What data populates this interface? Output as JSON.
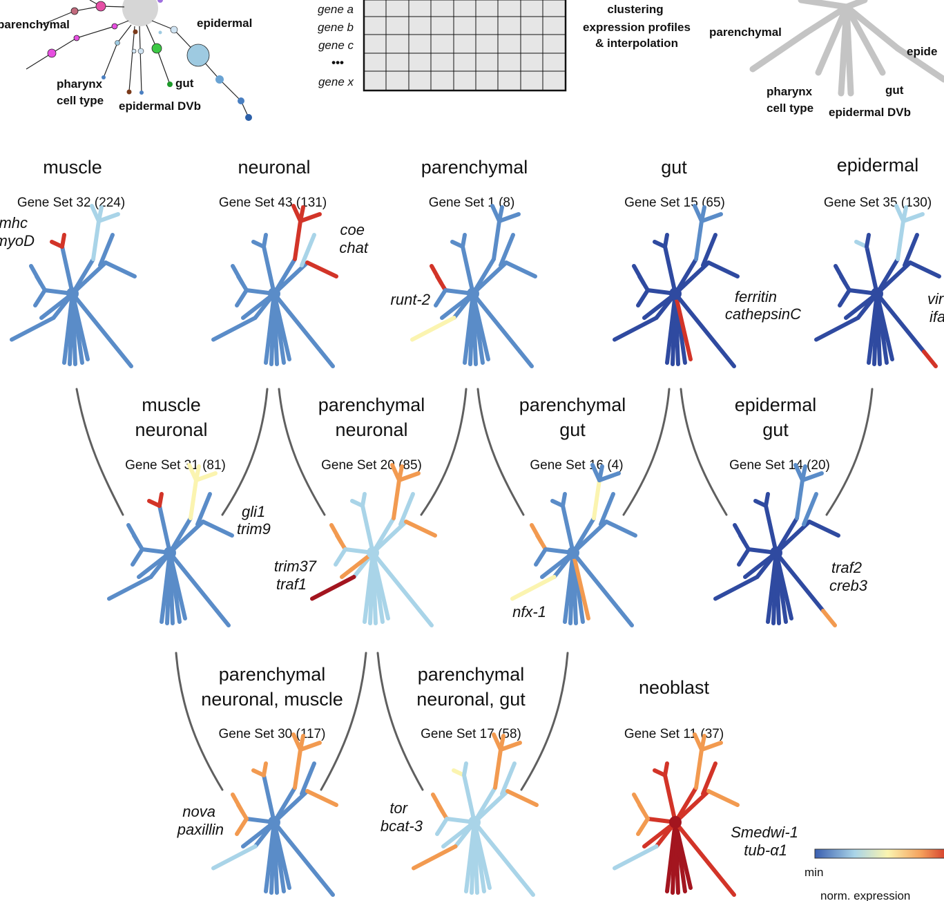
{
  "top": {
    "lineage_labels": {
      "parenchymal": "parenchymal",
      "epidermal": "epidermal",
      "pharynx": "pharynx",
      "cell_type": "cell type",
      "epidermal_dvb": "epidermal DVb",
      "gut": "gut"
    },
    "right_lineage_labels": {
      "parenchymal": "parenchymal",
      "epidermal": "epide",
      "pharynx": "pharynx",
      "cell_type": "cell type",
      "epidermal_dvb": "epidermal DVb",
      "gut": "gut"
    },
    "matrix_rows": [
      "gene a",
      "gene b",
      "gene c",
      "•••",
      "gene x"
    ],
    "clustering_text": [
      "clustering",
      "expression profiles",
      "& interpolation"
    ]
  },
  "panels": [
    {
      "id": "muscle",
      "title": [
        "muscle"
      ],
      "gene_set": "Gene Set 32 (224)",
      "genes": [
        "mhc",
        "myoD"
      ]
    },
    {
      "id": "neuronal",
      "title": [
        "neuronal"
      ],
      "gene_set": "Gene Set 43 (131)",
      "genes": [
        "coe",
        "chat"
      ]
    },
    {
      "id": "parenchymal",
      "title": [
        "parenchymal"
      ],
      "gene_set": "Gene Set 1 (8)",
      "genes": [
        "runt-2"
      ]
    },
    {
      "id": "gut",
      "title": [
        "gut"
      ],
      "gene_set": "Gene Set 15 (65)",
      "genes": [
        "ferritin",
        "cathepsinC"
      ]
    },
    {
      "id": "epidermal",
      "title": [
        "epidermal"
      ],
      "gene_set": "Gene Set 35 (130)",
      "genes": [
        "vir",
        "ifa"
      ]
    },
    {
      "id": "muscle-neuronal",
      "title": [
        "muscle",
        "neuronal"
      ],
      "gene_set": "Gene Set 31 (81)",
      "genes": [
        "gli1",
        "trim9"
      ]
    },
    {
      "id": "parenchymal-neuronal",
      "title": [
        "parenchymal",
        "neuronal"
      ],
      "gene_set": "Gene Set 20 (85)",
      "genes": [
        "trim37",
        "traf1"
      ]
    },
    {
      "id": "parenchymal-gut",
      "title": [
        "parenchymal",
        "gut"
      ],
      "gene_set": "Gene Set 16 (4)",
      "genes": [
        "nfx-1"
      ]
    },
    {
      "id": "epidermal-gut",
      "title": [
        "epidermal",
        "gut"
      ],
      "gene_set": "Gene Set 14 (20)",
      "genes": [
        "traf2",
        "creb3"
      ]
    },
    {
      "id": "parenchymal-neuronal-muscle",
      "title": [
        "parenchymal",
        "neuronal, muscle"
      ],
      "gene_set": "Gene Set 30 (117)",
      "genes": [
        "nova",
        "paxillin"
      ]
    },
    {
      "id": "parenchymal-neuronal-gut",
      "title": [
        "parenchymal",
        "neuronal, gut"
      ],
      "gene_set": "Gene Set 17 (58)",
      "genes": [
        "tor",
        "bcat-3"
      ]
    },
    {
      "id": "neoblast",
      "title": [
        "neoblast"
      ],
      "gene_set": "Gene Set 11 (37)",
      "genes": [
        "Smedwi-1",
        "tub-α1"
      ]
    }
  ],
  "legend": {
    "min_label": "min",
    "title": "norm. expression",
    "colors": [
      "#3a5fb0",
      "#a9d4e8",
      "#fbf4b0",
      "#f5a15c",
      "#d33a2a"
    ]
  },
  "colors": {
    "dark_blue": "#2f4aa0",
    "mid_blue": "#5a8cc8",
    "light_blue": "#a9d4e8",
    "yellow": "#fbf4b0",
    "orange": "#f29a50",
    "red": "#d23428",
    "dark_red": "#a3151f",
    "connector_gray": "#5f5f5f",
    "lineage_gray": "#c4c4c4"
  }
}
